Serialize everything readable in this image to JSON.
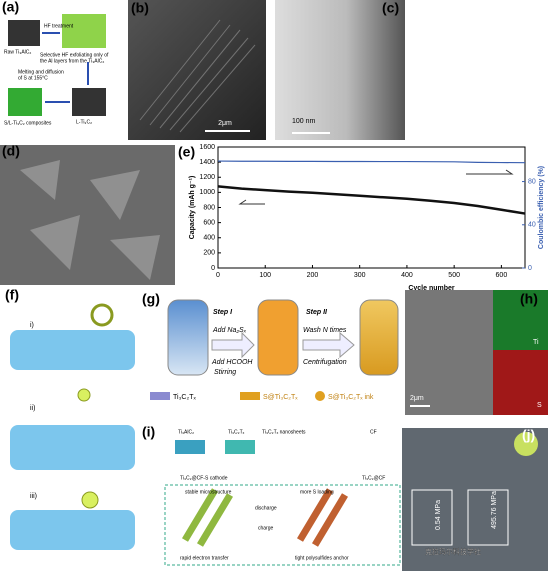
{
  "figure": {
    "panel_labels": [
      "(a)",
      "(b)",
      "(c)",
      "(d)",
      "(e)",
      "(f)",
      "(g)",
      "(h)",
      "(i)",
      "(j)"
    ],
    "a": {
      "raw": "Raw Ti₃AlC₂",
      "hf": "HF treatment",
      "selective": [
        "Selective HF exfoliating only of",
        "the Al layers from the Ti₃AlC₂"
      ],
      "melt": [
        "Melting and diffusion",
        "of S at 155°C"
      ],
      "l": "L-Ti₃C₂",
      "composite": "S/L-Ti₃C₂ composites"
    },
    "b_scale": "2μm",
    "c_scale": "100 nm",
    "f": [
      "i)",
      "ii)",
      "iii)"
    ],
    "g": {
      "step1": "Step I",
      "na2sx": "Add Na₂Sₓ",
      "hcooh": "Add HCOOH",
      "stirring": "Stirring",
      "step2": "Step II",
      "wash": "Wash N times",
      "centrifugation": "Centrifugation",
      "legend": [
        "Ti₃C₂Tₓ",
        "S@Ti₃C₂Tₓ",
        "S@Ti₃C₂Tₓ ink"
      ]
    },
    "h": {
      "ti": "Ti",
      "s": "S",
      "scale": "2μm"
    },
    "i": {
      "ti3alc2": "Ti₃AlC₂",
      "ti3c2tx": "Ti₃C₂Tₓ",
      "nanosheets": "Ti₃C₂Tₓ nanosheets",
      "cf": "CF",
      "ticf": "Ti₃C₂@CF",
      "cathode": "Ti₃C₂@CF-S cathode",
      "stable": "stable microstructure",
      "more_s": "more S loading",
      "rapid": "rapid electron transfer",
      "tight": "tight polysulfides anchor",
      "discharge": "discharge",
      "charge": "charge"
    },
    "j": {
      "low": "0.54 MPa",
      "high": "495.76 MPa"
    },
    "watermark": "克拉玛尔科技学社"
  },
  "chart_data": {
    "type": "line",
    "xlabel": "Cycle number",
    "ylabel": "Capacity (mAh g⁻¹)",
    "y2label": "Coulombic efficiency (%)",
    "x": [
      0,
      50,
      100,
      150,
      200,
      250,
      300,
      350,
      400,
      450,
      500,
      550,
      600,
      650
    ],
    "xlim": [
      0,
      650
    ],
    "xticks": [
      0,
      100,
      200,
      300,
      400,
      500,
      600
    ],
    "ylim": [
      0,
      1600
    ],
    "yticks": [
      0,
      200,
      400,
      600,
      800,
      1000,
      1200,
      1400,
      1600
    ],
    "y2lim": [
      0,
      112
    ],
    "y2ticks": [
      0,
      40,
      80
    ],
    "series": [
      {
        "name": "Capacity",
        "color": "#111111",
        "values": [
          1080,
          1050,
          1030,
          1010,
          995,
          975,
          955,
          935,
          915,
          890,
          860,
          820,
          770,
          720
        ]
      },
      {
        "name": "Coulombic efficiency",
        "color": "#3a5fb0",
        "axis": "y2",
        "values": [
          99,
          98.8,
          98.8,
          98.7,
          98.7,
          98.6,
          98.6,
          98.5,
          98.5,
          98.4,
          98.3,
          97.8,
          97.6,
          97.5
        ]
      }
    ]
  }
}
